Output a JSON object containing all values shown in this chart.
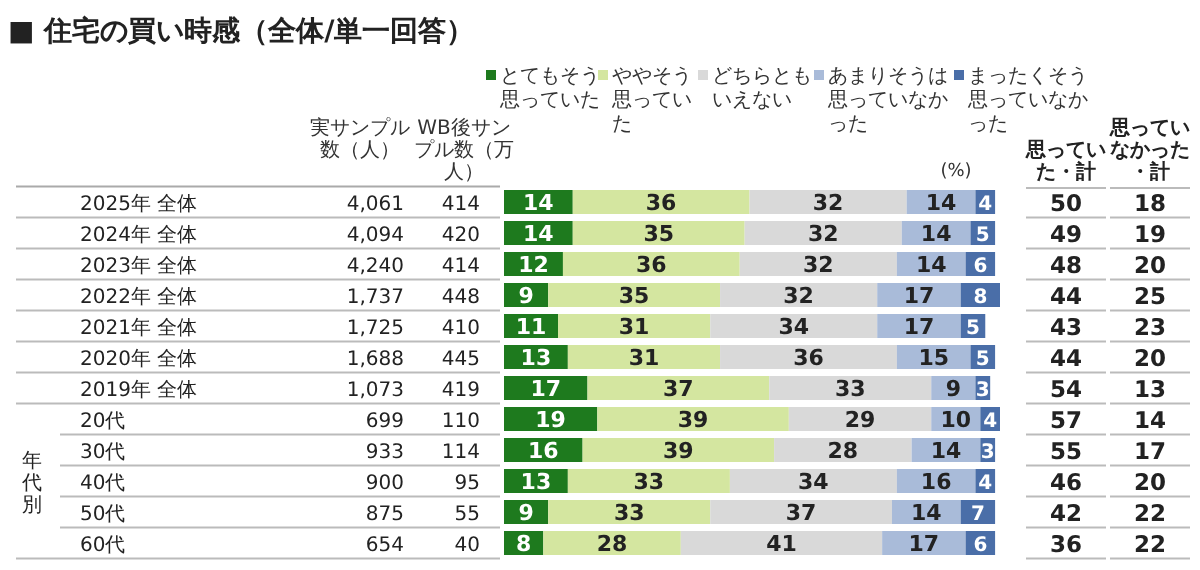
{
  "chart_data": [
    {
      "type": "other",
      "title": "■ 住宅の買い時感（全体/単一回答）",
      "annotations": [
        "実サンプル数（人）",
        "WB後サンプル数（万人）",
        "4,061",
        "414",
        "4,094",
        "420",
        "4,240",
        "414",
        "1,737",
        "448",
        "1,725",
        "410",
        "1,688",
        "445",
        "1,073",
        "419",
        "699",
        "110",
        "933",
        "114",
        "900",
        "95",
        "875",
        "55",
        "654",
        "40"
      ]
    },
    {
      "type": "bar",
      "orientation": "horizontal",
      "stacked": true,
      "xlim": [
        0,
        101
      ],
      "data_labels": true,
      "legend": "top",
      "annotations": [
        "(%)",
        "年代別"
      ],
      "categories": [
        "2025年 全体",
        "2024年 全体",
        "2023年 全体",
        "2022年 全体",
        "2021年 全体",
        "2020年 全体",
        "2019年 全体",
        "20代",
        "30代",
        "40代",
        "50代",
        "60代"
      ],
      "series": [
        {
          "name": "とてもそう思っていた",
          "color": "#1e7a1e",
          "values": [
            14,
            14,
            12,
            9,
            11,
            13,
            17,
            19,
            16,
            13,
            9,
            8
          ]
        },
        {
          "name": "ややそう思っていた",
          "color": "#d4e6a0",
          "values": [
            36,
            35,
            36,
            35,
            31,
            31,
            37,
            39,
            39,
            33,
            33,
            28
          ]
        },
        {
          "name": "どちらともいえない",
          "color": "#d9d9d9",
          "values": [
            32,
            32,
            32,
            32,
            34,
            36,
            33,
            29,
            28,
            34,
            37,
            41
          ]
        },
        {
          "name": "あまりそうは思っていなかった",
          "color": "#a9bbd9",
          "values": [
            14,
            14,
            14,
            17,
            17,
            15,
            9,
            10,
            14,
            16,
            14,
            17
          ]
        },
        {
          "name": "まったくそう思っていなかった",
          "color": "#4a6ea8",
          "values": [
            4,
            5,
            6,
            8,
            5,
            5,
            3,
            4,
            3,
            4,
            7,
            6
          ]
        }
      ]
    },
    {
      "type": "other",
      "annotations": [
        "思っていた・計",
        "思っていなかった・計",
        "50",
        "18",
        "49",
        "19",
        "48",
        "20",
        "44",
        "25",
        "43",
        "23",
        "44",
        "20",
        "54",
        "13",
        "57",
        "14",
        "55",
        "17",
        "46",
        "20",
        "42",
        "22",
        "36",
        "22"
      ]
    }
  ]
}
